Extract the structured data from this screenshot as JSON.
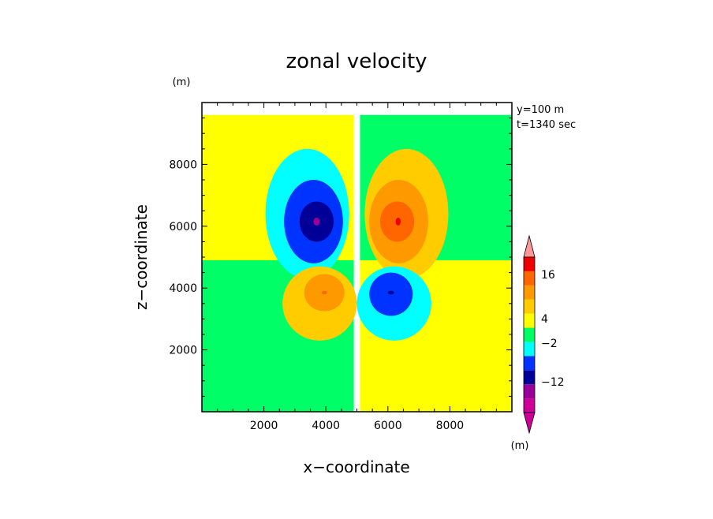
{
  "chart_data": {
    "type": "heatmap",
    "title": "zonal velocity",
    "xlabel": "x−coordinate",
    "ylabel": "z−coordinate",
    "x_unit": "(m)",
    "y_unit": "(m)",
    "annotations": [
      "y=100 m",
      "t=1340 sec"
    ],
    "xlim": [
      0,
      10000
    ],
    "ylim": [
      0,
      10000
    ],
    "x_ticks": [
      2000,
      4000,
      6000,
      8000
    ],
    "y_ticks": [
      2000,
      4000,
      6000,
      8000
    ],
    "x_tick_labels": [
      "2000",
      "4000",
      "6000",
      "8000"
    ],
    "y_tick_labels": [
      "2000",
      "4000",
      "6000",
      "8000"
    ],
    "colorbar": {
      "colors": [
        "#cc0099",
        "#990099",
        "#000099",
        "#0033ff",
        "#00ffff",
        "#00ff66",
        "#ffff00",
        "#ffcc00",
        "#ff9900",
        "#ff6600",
        "#ee0000",
        "#ff9999"
      ],
      "tick_labels": [
        "16",
        "4",
        "−2",
        "−12"
      ]
    },
    "regions": [
      {
        "level": 0,
        "sign": 1,
        "cx": 2450,
        "cz": 7100,
        "rx": 2450,
        "rz": 2500
      },
      {
        "level": 0,
        "sign": -1,
        "cx": 7550,
        "cz": 7100,
        "rx": 2450,
        "rz": 2500
      },
      {
        "level": 0,
        "sign": -1,
        "cx": 2450,
        "cz": 2450,
        "rx": 2450,
        "rz": 2450
      },
      {
        "level": 0,
        "sign": 1,
        "cx": 7550,
        "cz": 2450,
        "rx": 2450,
        "rz": 2450
      },
      {
        "level": 1,
        "sign": -1,
        "cx": 3400,
        "cz": 6400,
        "rx": 1350,
        "rz": 2100
      },
      {
        "level": 2,
        "sign": -1,
        "cx": 3600,
        "cz": 6150,
        "rx": 950,
        "rz": 1350
      },
      {
        "level": 3,
        "sign": -1,
        "cx": 3700,
        "cz": 6150,
        "rx": 550,
        "rz": 650
      },
      {
        "level": 4,
        "sign": -1,
        "cx": 3700,
        "cz": 6150,
        "rx": 100,
        "rz": 130
      },
      {
        "level": 1,
        "sign": 1,
        "cx": 6600,
        "cz": 6400,
        "rx": 1350,
        "rz": 2100
      },
      {
        "level": 2,
        "sign": 1,
        "cx": 6350,
        "cz": 6150,
        "rx": 950,
        "rz": 1350
      },
      {
        "level": 3,
        "sign": 1,
        "cx": 6300,
        "cz": 6150,
        "rx": 550,
        "rz": 650
      },
      {
        "level": 4,
        "sign": 1,
        "cx": 6330,
        "cz": 6150,
        "rx": 80,
        "rz": 130
      },
      {
        "level": 1,
        "sign": 1,
        "cx": 3800,
        "cz": 3500,
        "rx": 1200,
        "rz": 1200
      },
      {
        "level": 2,
        "sign": 1,
        "cx": 3950,
        "cz": 3850,
        "rx": 650,
        "rz": 600
      },
      {
        "level": 3,
        "sign": 1,
        "cx": 3950,
        "cz": 3850,
        "rx": 80,
        "rz": 60
      },
      {
        "level": 1,
        "sign": -1,
        "cx": 6200,
        "cz": 3500,
        "rx": 1200,
        "rz": 1200
      },
      {
        "level": 2,
        "sign": -1,
        "cx": 6100,
        "cz": 3800,
        "rx": 700,
        "rz": 700
      },
      {
        "level": 3,
        "sign": -1,
        "cx": 6100,
        "cz": 3850,
        "rx": 100,
        "rz": 60
      }
    ]
  }
}
